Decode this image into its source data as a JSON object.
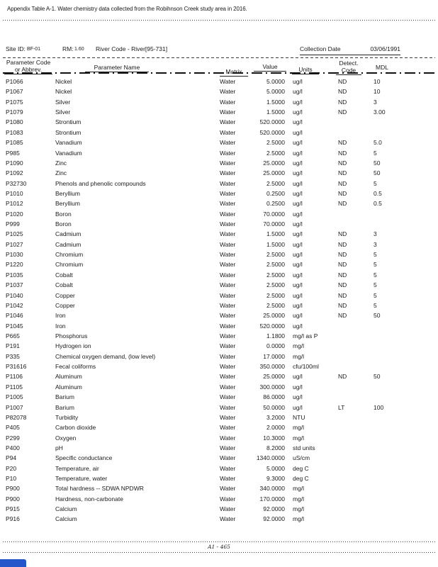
{
  "colors": {
    "accent_blue": "#2456c9"
  },
  "title": "Appendix Table A-1. Water chemistry data collected from the Robihnson Creek study area in 2016.",
  "site_header": {
    "site_id_label": "Site ID:",
    "site_id_value": "BF-01",
    "rm_label": "RM:",
    "rm_value": "1.60",
    "river_code": "River Code - River[95-731]",
    "collection_date_label": "Collection Date",
    "collection_date_value": "03/06/1991"
  },
  "columns": {
    "param_code_line1": "Parameter Code",
    "param_code_line2": "or Abbrev.",
    "param_name": "Parameter Name",
    "matrix": "Matrix",
    "value": "Value",
    "units": "Units",
    "detect_line1": "Detect.",
    "detect_line2": "Code",
    "mdl": "MDL"
  },
  "rows": [
    {
      "code": "P1066",
      "name": "Nickel",
      "matrix": "Water",
      "value": "5.0000",
      "units": "ug/l",
      "detect": "ND",
      "mdl": "10"
    },
    {
      "code": "P1067",
      "name": "Nickel",
      "matrix": "Water",
      "value": "5.0000",
      "units": "ug/l",
      "detect": "ND",
      "mdl": "10"
    },
    {
      "code": "P1075",
      "name": "Silver",
      "matrix": "Water",
      "value": "1.5000",
      "units": "ug/l",
      "detect": "ND",
      "mdl": "3"
    },
    {
      "code": "P1079",
      "name": "Silver",
      "matrix": "Water",
      "value": "1.5000",
      "units": "ug/l",
      "detect": "ND",
      "mdl": "3.00"
    },
    {
      "code": "P1080",
      "name": "Strontium",
      "matrix": "Water",
      "value": "520.0000",
      "units": "ug/l",
      "detect": "",
      "mdl": ""
    },
    {
      "code": "P1083",
      "name": "Strontium",
      "matrix": "Water",
      "value": "520.0000",
      "units": "ug/l",
      "detect": "",
      "mdl": ""
    },
    {
      "code": "P1085",
      "name": "Vanadium",
      "matrix": "Water",
      "value": "2.5000",
      "units": "ug/l",
      "detect": "ND",
      "mdl": "5.0"
    },
    {
      "code": "P985",
      "name": "Vanadium",
      "matrix": "Water",
      "value": "2.5000",
      "units": "ug/l",
      "detect": "ND",
      "mdl": "5"
    },
    {
      "code": "P1090",
      "name": "Zinc",
      "matrix": "Water",
      "value": "25.0000",
      "units": "ug/l",
      "detect": "ND",
      "mdl": "50"
    },
    {
      "code": "P1092",
      "name": "Zinc",
      "matrix": "Water",
      "value": "25.0000",
      "units": "ug/l",
      "detect": "ND",
      "mdl": "50"
    },
    {
      "code": "P32730",
      "name": "Phenols and phenolic compounds",
      "matrix": "Water",
      "value": "2.5000",
      "units": "ug/l",
      "detect": "ND",
      "mdl": "5"
    },
    {
      "code": "P1010",
      "name": "Beryllium",
      "matrix": "Water",
      "value": "0.2500",
      "units": "ug/l",
      "detect": "ND",
      "mdl": "0.5"
    },
    {
      "code": "P1012",
      "name": "Beryllium",
      "matrix": "Water",
      "value": "0.2500",
      "units": "ug/l",
      "detect": "ND",
      "mdl": "0.5"
    },
    {
      "code": "P1020",
      "name": "Boron",
      "matrix": "Water",
      "value": "70.0000",
      "units": "ug/l",
      "detect": "",
      "mdl": ""
    },
    {
      "code": "P999",
      "name": "Boron",
      "matrix": "Water",
      "value": "70.0000",
      "units": "ug/l",
      "detect": "",
      "mdl": ""
    },
    {
      "code": "P1025",
      "name": "Cadmium",
      "matrix": "Water",
      "value": "1.5000",
      "units": "ug/l",
      "detect": "ND",
      "mdl": "3"
    },
    {
      "code": "P1027",
      "name": "Cadmium",
      "matrix": "Water",
      "value": "1.5000",
      "units": "ug/l",
      "detect": "ND",
      "mdl": "3"
    },
    {
      "code": "P1030",
      "name": "Chromium",
      "matrix": "Water",
      "value": "2.5000",
      "units": "ug/l",
      "detect": "ND",
      "mdl": "5"
    },
    {
      "code": "P1220",
      "name": "Chromium",
      "matrix": "Water",
      "value": "2.5000",
      "units": "ug/l",
      "detect": "ND",
      "mdl": "5"
    },
    {
      "code": "P1035",
      "name": "Cobalt",
      "matrix": "Water",
      "value": "2.5000",
      "units": "ug/l",
      "detect": "ND",
      "mdl": "5"
    },
    {
      "code": "P1037",
      "name": "Cobalt",
      "matrix": "Water",
      "value": "2.5000",
      "units": "ug/l",
      "detect": "ND",
      "mdl": "5"
    },
    {
      "code": "P1040",
      "name": "Copper",
      "matrix": "Water",
      "value": "2.5000",
      "units": "ug/l",
      "detect": "ND",
      "mdl": "5"
    },
    {
      "code": "P1042",
      "name": "Copper",
      "matrix": "Water",
      "value": "2.5000",
      "units": "ug/l",
      "detect": "ND",
      "mdl": "5"
    },
    {
      "code": "P1046",
      "name": "Iron",
      "matrix": "Water",
      "value": "25.0000",
      "units": "ug/l",
      "detect": "ND",
      "mdl": "50"
    },
    {
      "code": "P1045",
      "name": "Iron",
      "matrix": "Water",
      "value": "520.0000",
      "units": "ug/l",
      "detect": "",
      "mdl": ""
    },
    {
      "code": "P665",
      "name": "Phosphorus",
      "matrix": "Water",
      "value": "1.1800",
      "units": "mg/l as P",
      "detect": "",
      "mdl": ""
    },
    {
      "code": "P191",
      "name": "Hydrogen ion",
      "matrix": "Water",
      "value": "0.0000",
      "units": "mg/l",
      "detect": "",
      "mdl": ""
    },
    {
      "code": "P335",
      "name": "Chemical oxygen demand, (low level)",
      "matrix": "Water",
      "value": "17.0000",
      "units": "mg/l",
      "detect": "",
      "mdl": ""
    },
    {
      "code": "P31616",
      "name": "Fecal coliforms",
      "matrix": "Water",
      "value": "350.0000",
      "units": "cfu/100ml",
      "detect": "",
      "mdl": ""
    },
    {
      "code": "P1106",
      "name": "Aluminum",
      "matrix": "Water",
      "value": "25.0000",
      "units": "ug/l",
      "detect": "ND",
      "mdl": "50"
    },
    {
      "code": "P1105",
      "name": "Aluminum",
      "matrix": "Water",
      "value": "300.0000",
      "units": "ug/l",
      "detect": "",
      "mdl": ""
    },
    {
      "code": "P1005",
      "name": "Barium",
      "matrix": "Water",
      "value": "86.0000",
      "units": "ug/l",
      "detect": "",
      "mdl": ""
    },
    {
      "code": "P1007",
      "name": "Barium",
      "matrix": "Water",
      "value": "50.0000",
      "units": "ug/l",
      "detect": "LT",
      "mdl": "100"
    },
    {
      "code": "P82078",
      "name": "Turbidity",
      "matrix": "Water",
      "value": "3.2000",
      "units": "NTU",
      "detect": "",
      "mdl": ""
    },
    {
      "code": "P405",
      "name": "Carbon dioxide",
      "matrix": "Water",
      "value": "2.0000",
      "units": "mg/l",
      "detect": "",
      "mdl": ""
    },
    {
      "code": "P299",
      "name": "Oxygen",
      "matrix": "Water",
      "value": "10.3000",
      "units": "mg/l",
      "detect": "",
      "mdl": ""
    },
    {
      "code": "P400",
      "name": "pH",
      "matrix": "Water",
      "value": "8.2000",
      "units": "std units",
      "detect": "",
      "mdl": ""
    },
    {
      "code": "P94",
      "name": "Specific conductance",
      "matrix": "Water",
      "value": "1340.0000",
      "units": "uS/cm",
      "detect": "",
      "mdl": ""
    },
    {
      "code": "P20",
      "name": "Temperature, air",
      "matrix": "Water",
      "value": "5.0000",
      "units": "deg C",
      "detect": "",
      "mdl": ""
    },
    {
      "code": "P10",
      "name": "Temperature, water",
      "matrix": "Water",
      "value": "9.3000",
      "units": "deg C",
      "detect": "",
      "mdl": ""
    },
    {
      "code": "P900",
      "name": "Total hardness -- SDWA NPDWR",
      "matrix": "Water",
      "value": "340.0000",
      "units": "mg/l",
      "detect": "",
      "mdl": ""
    },
    {
      "code": "P900",
      "name": "Hardness, non-carbonate",
      "matrix": "Water",
      "value": "170.0000",
      "units": "mg/l",
      "detect": "",
      "mdl": ""
    },
    {
      "code": "P915",
      "name": "Calcium",
      "matrix": "Water",
      "value": "92.0000",
      "units": "mg/l",
      "detect": "",
      "mdl": ""
    },
    {
      "code": "P916",
      "name": "Calcium",
      "matrix": "Water",
      "value": "92.0000",
      "units": "mg/l",
      "detect": "",
      "mdl": ""
    }
  ],
  "footer": {
    "page_number": "A1 - 465"
  }
}
